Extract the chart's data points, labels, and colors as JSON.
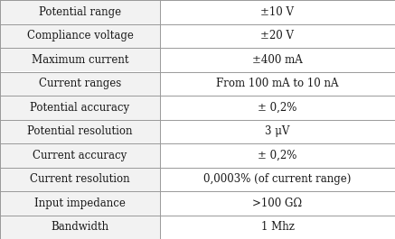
{
  "rows": [
    [
      "Potential range",
      "±10 V"
    ],
    [
      "Compliance voltage",
      "±20 V"
    ],
    [
      "Maximum current",
      "±400 mA"
    ],
    [
      "Current ranges",
      "From 100 mA to 10 nA"
    ],
    [
      "Potential accuracy",
      "± 0,2%"
    ],
    [
      "Potential resolution",
      "3 μV"
    ],
    [
      "Current accuracy",
      "± 0,2%"
    ],
    [
      "Current resolution",
      "0,0003% (of current range)"
    ],
    [
      "Input impedance",
      ">100 GΩ"
    ],
    [
      "Bandwidth",
      "1 Mhz"
    ]
  ],
  "col_split": 0.405,
  "bg_color": "#ffffff",
  "cell_bg": "#f2f2f2",
  "line_color": "#999999",
  "text_color": "#1a1a1a",
  "font_size": 8.5,
  "fig_width": 4.37,
  "fig_height": 2.65,
  "dpi": 100
}
